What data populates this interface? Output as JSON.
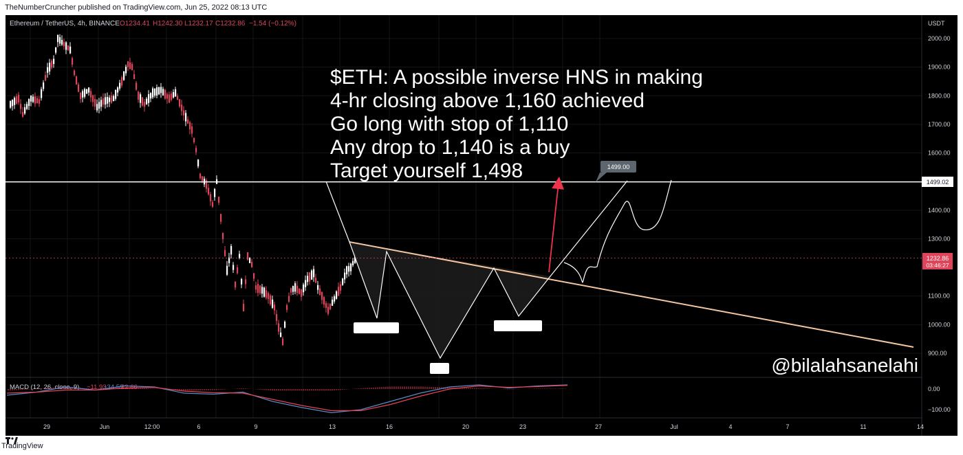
{
  "published_line": "TheNumberCruncher published on TradingView.com, Jun 25, 2022 08:13 UTC",
  "footer_brand": "TradingView",
  "symbol_line": {
    "name": "Ethereum / TetherUS, 4h, BINANCE",
    "open": "O1234.41",
    "high": "H1242.30",
    "low": "L1232.17",
    "close": "C1232.86",
    "change": "−1.54 (−0.12%)"
  },
  "currency": "USDT",
  "annotation_lines": [
    "$ETH: A possible inverse HNS in making",
    "4-hr closing above 1,160 achieved",
    "Go long with stop of 1,110",
    "Any drop to 1,140 is a buy",
    "Target yourself 1,498"
  ],
  "watermark": "@bilalahsanelahi",
  "target_callout": "1499.00",
  "horizontal_level_label": "1499.02",
  "last_price_label": "1232.86",
  "countdown_label": "03:46:27",
  "macd": {
    "label": "MACD (12, 26, close, 9)",
    "values": [
      "−11.93",
      "−34.59",
      "22.66"
    ],
    "ticks": [
      {
        "label": "0.00",
        "value": 0
      },
      {
        "label": "−100.00",
        "value": -100
      }
    ]
  },
  "colors": {
    "background": "#000000",
    "up": "#ffffff",
    "down": "#e0445a",
    "resistance": "#ffffff",
    "neckline": "#f5c6a0",
    "target_arrow": "#f0334d",
    "macd_line": "#5b8ac6",
    "signal_line": "#e8435a"
  },
  "chart_data": {
    "type": "candlestick",
    "y_axis": {
      "min": 880,
      "max": 2060,
      "ticks": [
        {
          "label": "2000.00",
          "value": 2000
        },
        {
          "label": "1900.00",
          "value": 1900
        },
        {
          "label": "1800.00",
          "value": 1800
        },
        {
          "label": "1700.00",
          "value": 1700
        },
        {
          "label": "1600.00",
          "value": 1600
        },
        {
          "label": "1400.00",
          "value": 1400
        },
        {
          "label": "1300.00",
          "value": 1300
        },
        {
          "label": "1100.00",
          "value": 1100
        },
        {
          "label": "1000.00",
          "value": 1000
        },
        {
          "label": "900.00",
          "value": 900
        }
      ]
    },
    "x_ticks": [
      {
        "label": "29",
        "bar": 10
      },
      {
        "label": "Jun",
        "bar": 28
      },
      {
        "label": "12:00",
        "bar": 43
      },
      {
        "label": "6",
        "bar": 58
      },
      {
        "label": "9",
        "bar": 76
      },
      {
        "label": "13",
        "bar": 100
      },
      {
        "label": "16",
        "bar": 118
      },
      {
        "label": "20",
        "bar": 142
      },
      {
        "label": "23",
        "bar": 160
      },
      {
        "label": "27",
        "bar": 184
      },
      {
        "label": "Jul",
        "bar": 208
      },
      {
        "label": "4",
        "bar": 226
      },
      {
        "label": "7",
        "bar": 244
      },
      {
        "label": "11",
        "bar": 268
      },
      {
        "label": "14",
        "bar": 286
      }
    ],
    "price_path": [
      [
        0,
        1770
      ],
      [
        4,
        1790
      ],
      [
        6,
        1735
      ],
      [
        10,
        1790
      ],
      [
        14,
        1780
      ],
      [
        18,
        1890
      ],
      [
        21,
        1920
      ],
      [
        23,
        2000
      ],
      [
        26,
        1980
      ],
      [
        29,
        1960
      ],
      [
        31,
        1880
      ],
      [
        34,
        1800
      ],
      [
        38,
        1820
      ],
      [
        42,
        1760
      ],
      [
        45,
        1780
      ],
      [
        50,
        1790
      ],
      [
        54,
        1850
      ],
      [
        57,
        1910
      ],
      [
        59,
        1900
      ],
      [
        62,
        1800
      ],
      [
        65,
        1770
      ],
      [
        69,
        1810
      ],
      [
        73,
        1820
      ],
      [
        77,
        1790
      ],
      [
        80,
        1810
      ],
      [
        84,
        1740
      ],
      [
        88,
        1680
      ],
      [
        90,
        1610
      ],
      [
        92,
        1520
      ],
      [
        95,
        1490
      ],
      [
        98,
        1420
      ],
      [
        100,
        1500
      ],
      [
        103,
        1310
      ],
      [
        105,
        1190
      ],
      [
        107,
        1260
      ],
      [
        109,
        1140
      ],
      [
        111,
        1240
      ],
      [
        113,
        1060
      ],
      [
        115,
        1240
      ],
      [
        117,
        1210
      ],
      [
        119,
        1130
      ],
      [
        122,
        1120
      ],
      [
        125,
        1100
      ],
      [
        128,
        1060
      ],
      [
        130,
        990
      ],
      [
        132,
        940
      ],
      [
        134,
        1060
      ],
      [
        136,
        1120
      ],
      [
        138,
        1130
      ],
      [
        141,
        1110
      ],
      [
        144,
        1160
      ],
      [
        147,
        1180
      ],
      [
        149,
        1130
      ],
      [
        151,
        1100
      ],
      [
        154,
        1050
      ],
      [
        157,
        1090
      ],
      [
        160,
        1130
      ],
      [
        163,
        1190
      ],
      [
        165,
        1200
      ],
      [
        167,
        1230
      ]
    ],
    "series": [
      {
        "name": "MACD",
        "values": [
          -30,
          -15,
          10,
          -5,
          15,
          10,
          -20,
          -25,
          -15,
          -60,
          -90,
          -115,
          -100,
          -60,
          -20,
          10,
          20,
          5,
          15,
          20
        ]
      },
      {
        "name": "Signal",
        "values": [
          -20,
          -15,
          -5,
          -5,
          5,
          8,
          -10,
          -18,
          -20,
          -50,
          -80,
          -105,
          -105,
          -75,
          -35,
          0,
          15,
          8,
          12,
          18
        ]
      }
    ],
    "levels": [
      {
        "label": "1499.02",
        "value": 1499.02
      }
    ],
    "last_price": 1232.86
  }
}
